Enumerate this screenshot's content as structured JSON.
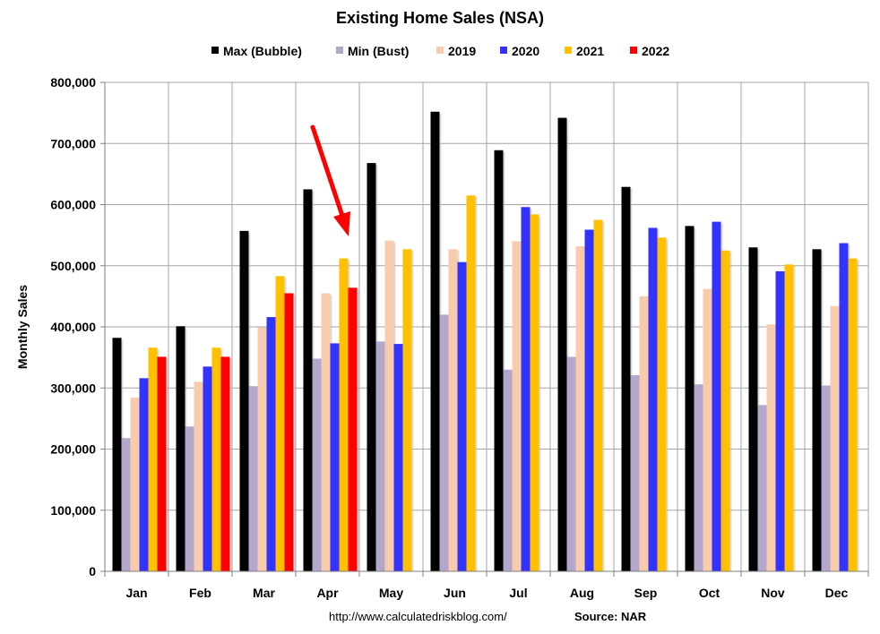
{
  "chart_data": {
    "type": "bar",
    "title": "Existing Home Sales (NSA)",
    "ylabel": "Monthly Sales",
    "xlabel": "",
    "ylim": [
      0,
      800000
    ],
    "yticks": [
      0,
      100000,
      200000,
      300000,
      400000,
      500000,
      600000,
      700000,
      800000
    ],
    "ytick_labels": [
      "0",
      "100,000",
      "200,000",
      "300,000",
      "400,000",
      "500,000",
      "600,000",
      "700,000",
      "800,000"
    ],
    "grid": true,
    "legend_position": "top",
    "categories": [
      "Jan",
      "Feb",
      "Mar",
      "Apr",
      "May",
      "Jun",
      "Jul",
      "Aug",
      "Sep",
      "Oct",
      "Nov",
      "Dec"
    ],
    "series": [
      {
        "name": "Max (Bubble)",
        "color": "#000000",
        "values": [
          382000,
          401000,
          557000,
          625000,
          668000,
          752000,
          689000,
          742000,
          629000,
          565000,
          530000,
          527000
        ]
      },
      {
        "name": "Min (Bust)",
        "color": "#b4a7cc",
        "values": [
          218000,
          237000,
          303000,
          348000,
          376000,
          420000,
          330000,
          351000,
          321000,
          306000,
          272000,
          304000
        ]
      },
      {
        "name": "2019",
        "color": "#f8cbad",
        "values": [
          284000,
          310000,
          399000,
          455000,
          541000,
          527000,
          540000,
          532000,
          450000,
          462000,
          404000,
          434000
        ]
      },
      {
        "name": "2020",
        "color": "#3333ff",
        "values": [
          316000,
          335000,
          416000,
          373000,
          372000,
          506000,
          596000,
          559000,
          562000,
          572000,
          491000,
          537000
        ]
      },
      {
        "name": "2021",
        "color": "#ffc000",
        "values": [
          366000,
          366000,
          483000,
          512000,
          527000,
          615000,
          584000,
          575000,
          546000,
          525000,
          502000,
          512000
        ]
      },
      {
        "name": "2022",
        "color": "#ff0000",
        "values": [
          351000,
          351000,
          455000,
          464000,
          null,
          null,
          null,
          null,
          null,
          null,
          null,
          null
        ]
      }
    ],
    "annotations": {
      "arrow_color": "#ff0000",
      "arrow_target_category": "Apr"
    },
    "footer": {
      "url": "http://www.calculatedriskblog.com/",
      "source": "Source: NAR"
    }
  }
}
